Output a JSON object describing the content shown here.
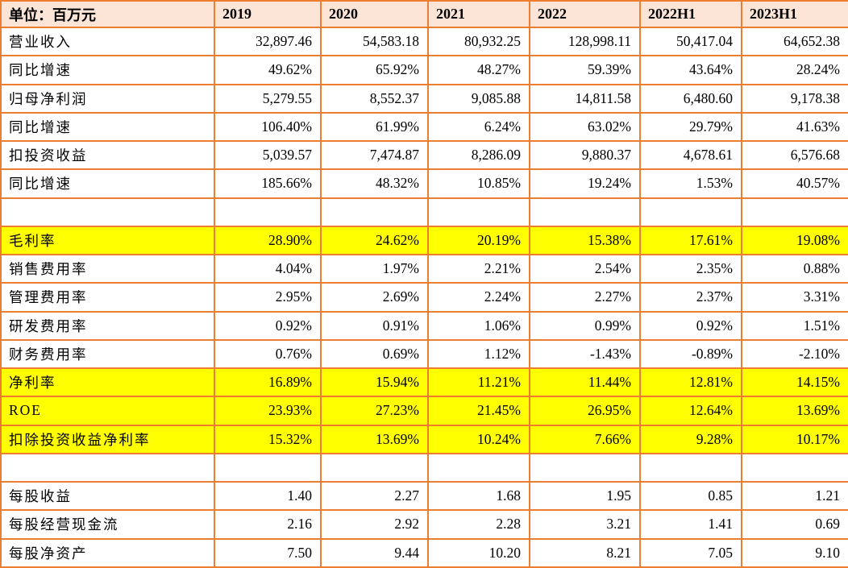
{
  "table": {
    "unit_label": "单位：百万元",
    "columns": [
      "2019",
      "2020",
      "2021",
      "2022",
      "2022H1",
      "2023H1"
    ],
    "rows": [
      {
        "label": "营业收入",
        "style": "normal",
        "values": [
          "32,897.46",
          "54,583.18",
          "80,932.25",
          "128,998.11",
          "50,417.04",
          "64,652.38"
        ]
      },
      {
        "label": "同比增速",
        "style": "normal",
        "values": [
          "49.62%",
          "65.92%",
          "48.27%",
          "59.39%",
          "43.64%",
          "28.24%"
        ]
      },
      {
        "label": "归母净利润",
        "style": "normal",
        "values": [
          "5,279.55",
          "8,552.37",
          "9,085.88",
          "14,811.58",
          "6,480.60",
          "9,178.38"
        ]
      },
      {
        "label": "同比增速",
        "style": "normal",
        "values": [
          "106.40%",
          "61.99%",
          "6.24%",
          "63.02%",
          "29.79%",
          "41.63%"
        ]
      },
      {
        "label": "扣投资收益",
        "style": "normal",
        "values": [
          "5,039.57",
          "7,474.87",
          "8,286.09",
          "9,880.37",
          "4,678.61",
          "6,576.68"
        ]
      },
      {
        "label": "同比增速",
        "style": "normal",
        "values": [
          "185.66%",
          "48.32%",
          "10.85%",
          "19.24%",
          "1.53%",
          "40.57%"
        ]
      },
      {
        "label": "",
        "style": "spacer",
        "values": [
          "",
          "",
          "",
          "",
          "",
          ""
        ]
      },
      {
        "label": "毛利率",
        "style": "highlight",
        "values": [
          "28.90%",
          "24.62%",
          "20.19%",
          "15.38%",
          "17.61%",
          "19.08%"
        ]
      },
      {
        "label": "销售费用率",
        "style": "normal",
        "values": [
          "4.04%",
          "1.97%",
          "2.21%",
          "2.54%",
          "2.35%",
          "0.88%"
        ]
      },
      {
        "label": "管理费用率",
        "style": "normal",
        "values": [
          "2.95%",
          "2.69%",
          "2.24%",
          "2.27%",
          "2.37%",
          "3.31%"
        ]
      },
      {
        "label": "研发费用率",
        "style": "normal",
        "values": [
          "0.92%",
          "0.91%",
          "1.06%",
          "0.99%",
          "0.92%",
          "1.51%"
        ]
      },
      {
        "label": "财务费用率",
        "style": "normal",
        "values": [
          "0.76%",
          "0.69%",
          "1.12%",
          "-1.43%",
          "-0.89%",
          "-2.10%"
        ]
      },
      {
        "label": "净利率",
        "style": "highlight",
        "values": [
          "16.89%",
          "15.94%",
          "11.21%",
          "11.44%",
          "12.81%",
          "14.15%"
        ]
      },
      {
        "label": "ROE",
        "style": "highlight",
        "values": [
          "23.93%",
          "27.23%",
          "21.45%",
          "26.95%",
          "12.64%",
          "13.69%"
        ]
      },
      {
        "label": "扣除投资收益净利率",
        "style": "highlight",
        "values": [
          "15.32%",
          "13.69%",
          "10.24%",
          "7.66%",
          "9.28%",
          "10.17%"
        ]
      },
      {
        "label": "",
        "style": "spacer",
        "values": [
          "",
          "",
          "",
          "",
          "",
          ""
        ]
      },
      {
        "label": "每股收益",
        "style": "normal",
        "values": [
          "1.40",
          "2.27",
          "1.68",
          "1.95",
          "0.85",
          "1.21"
        ]
      },
      {
        "label": "每股经营现金流",
        "style": "normal",
        "values": [
          "2.16",
          "2.92",
          "2.28",
          "3.21",
          "1.41",
          "0.69"
        ]
      },
      {
        "label": "每股净资产",
        "style": "normal",
        "values": [
          "7.50",
          "9.44",
          "10.20",
          "8.21",
          "7.05",
          "9.10"
        ]
      }
    ],
    "colors": {
      "border": "#ED7D31",
      "header_bg": "#FCE4D6",
      "highlight_bg": "#FFFF00",
      "text": "#000000"
    }
  }
}
